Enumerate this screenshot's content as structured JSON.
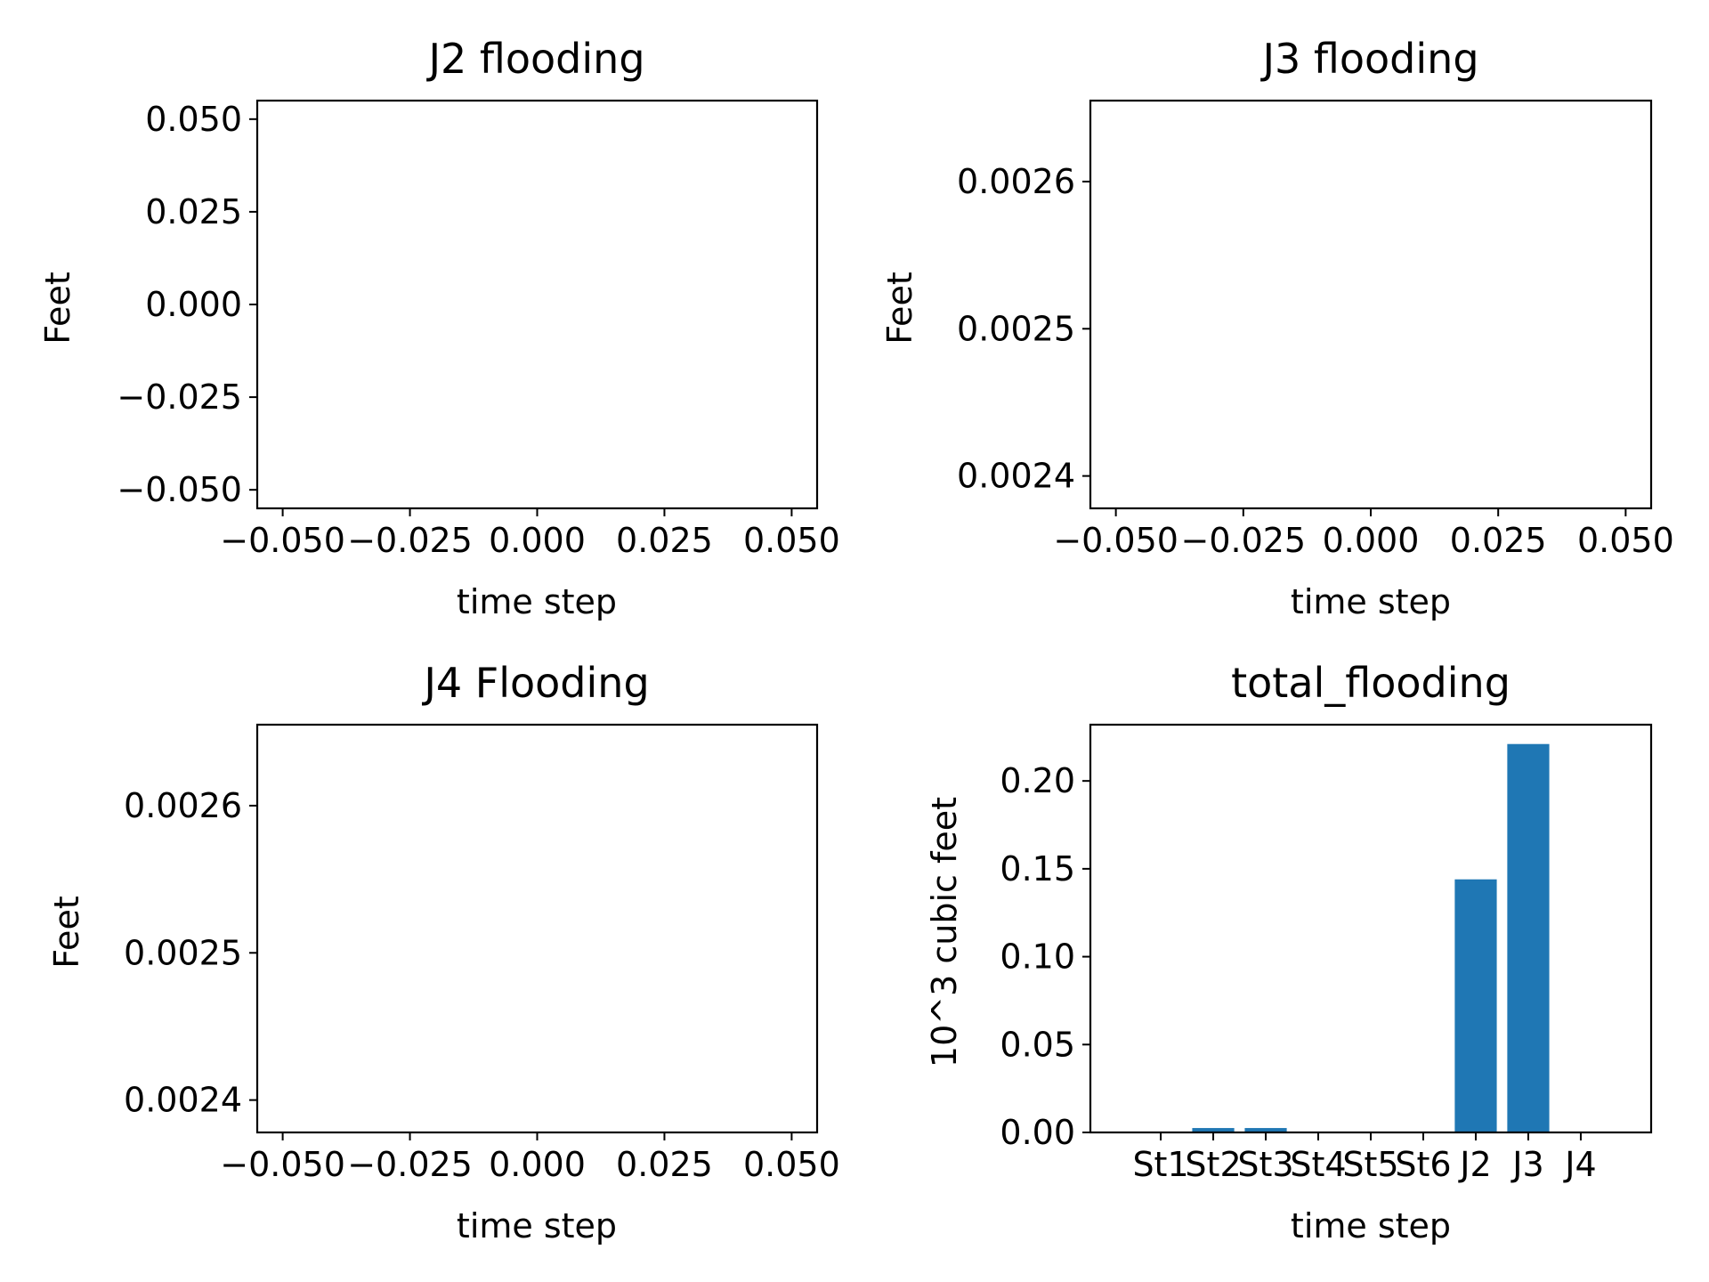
{
  "chart_data": [
    {
      "type": "line",
      "title": "J2 flooding",
      "xlabel": "time step",
      "ylabel": "Feet",
      "xlim": [
        -0.055,
        0.055
      ],
      "ylim": [
        -0.055,
        0.055
      ],
      "xticks": [
        {
          "value": -0.05,
          "label": "−0.050"
        },
        {
          "value": -0.025,
          "label": "−0.025"
        },
        {
          "value": 0.0,
          "label": "0.000"
        },
        {
          "value": 0.025,
          "label": "0.025"
        },
        {
          "value": 0.05,
          "label": "0.050"
        }
      ],
      "yticks": [
        {
          "value": -0.05,
          "label": "−0.050"
        },
        {
          "value": -0.025,
          "label": "−0.025"
        },
        {
          "value": 0.0,
          "label": "0.000"
        },
        {
          "value": 0.025,
          "label": "0.025"
        },
        {
          "value": 0.05,
          "label": "0.050"
        }
      ],
      "series": []
    },
    {
      "type": "line",
      "title": "J3 flooding",
      "xlabel": "time step",
      "ylabel": "Feet",
      "xlim": [
        -0.055,
        0.055
      ],
      "ylim": [
        0.002378,
        0.002655
      ],
      "xticks": [
        {
          "value": -0.05,
          "label": "−0.050"
        },
        {
          "value": -0.025,
          "label": "−0.025"
        },
        {
          "value": 0.0,
          "label": "0.000"
        },
        {
          "value": 0.025,
          "label": "0.025"
        },
        {
          "value": 0.05,
          "label": "0.050"
        }
      ],
      "yticks": [
        {
          "value": 0.0024,
          "label": "0.0024"
        },
        {
          "value": 0.0025,
          "label": "0.0025"
        },
        {
          "value": 0.0026,
          "label": "0.0026"
        }
      ],
      "series": []
    },
    {
      "type": "line",
      "title": "J4 Flooding",
      "xlabel": "time step",
      "ylabel": "Feet",
      "xlim": [
        -0.055,
        0.055
      ],
      "ylim": [
        0.002378,
        0.002655
      ],
      "xticks": [
        {
          "value": -0.05,
          "label": "−0.050"
        },
        {
          "value": -0.025,
          "label": "−0.025"
        },
        {
          "value": 0.0,
          "label": "0.000"
        },
        {
          "value": 0.025,
          "label": "0.025"
        },
        {
          "value": 0.05,
          "label": "0.050"
        }
      ],
      "yticks": [
        {
          "value": 0.0024,
          "label": "0.0024"
        },
        {
          "value": 0.0025,
          "label": "0.0025"
        },
        {
          "value": 0.0026,
          "label": "0.0026"
        }
      ],
      "series": []
    },
    {
      "type": "bar",
      "title": "total_flooding",
      "xlabel": "time step",
      "ylabel": "10^3 cubic feet",
      "categories": [
        "St1",
        "St2",
        "St3",
        "St4",
        "St5",
        "St6",
        "J2",
        "J3",
        "J4"
      ],
      "values": [
        0.0,
        0.0025,
        0.0025,
        0.0,
        0.0,
        0.0,
        0.144,
        0.221,
        0.0
      ],
      "ylim": [
        0,
        0.232
      ],
      "yticks": [
        {
          "value": 0.0,
          "label": "0.00"
        },
        {
          "value": 0.05,
          "label": "0.05"
        },
        {
          "value": 0.1,
          "label": "0.10"
        },
        {
          "value": 0.15,
          "label": "0.15"
        },
        {
          "value": 0.2,
          "label": "0.20"
        }
      ],
      "color": "#1f77b4"
    }
  ]
}
